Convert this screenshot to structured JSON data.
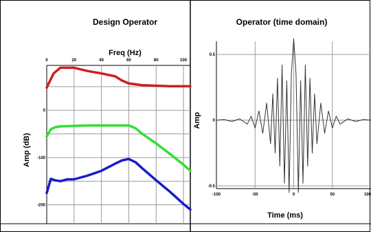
{
  "chart_data": [
    {
      "type": "line",
      "title": "Design Operator",
      "xlabel": "Freq (Hz)",
      "ylabel": "Amp (dB)",
      "x_ticks": [
        "0",
        "20",
        "40",
        "60",
        "80",
        "100"
      ],
      "y_ticks": [
        "0",
        "-100",
        "-200"
      ],
      "xlim": [
        0,
        105
      ],
      "ylim": [
        -240,
        95
      ],
      "grid": true,
      "series": [
        {
          "color": "#cc1f1f",
          "x": [
            0,
            5,
            10,
            20,
            30,
            40,
            50,
            55,
            60,
            65,
            70,
            80,
            90,
            100,
            105
          ],
          "y": [
            48,
            78,
            90,
            90,
            83,
            78,
            72,
            63,
            57,
            55,
            53,
            52,
            51,
            51,
            51
          ]
        },
        {
          "color": "#33dd33",
          "x": [
            0,
            3,
            6,
            10,
            20,
            30,
            40,
            50,
            60,
            65,
            70,
            80,
            90,
            100,
            105
          ],
          "y": [
            -55,
            -40,
            -36,
            -34,
            -33,
            -32,
            -32,
            -32,
            -32,
            -38,
            -50,
            -70,
            -92,
            -115,
            -128
          ]
        },
        {
          "color": "#1a1acc",
          "x": [
            0,
            3,
            6,
            10,
            15,
            20,
            30,
            40,
            50,
            55,
            60,
            65,
            70,
            80,
            90,
            100,
            105
          ],
          "y": [
            -175,
            -145,
            -148,
            -150,
            -146,
            -146,
            -138,
            -128,
            -113,
            -106,
            -103,
            -110,
            -123,
            -148,
            -172,
            -198,
            -210
          ]
        }
      ]
    },
    {
      "type": "line",
      "title": "Operator (time domain)",
      "xlabel": "Time (ms)",
      "ylabel": "Amp",
      "x_ticks": [
        "-100",
        "-50",
        "0",
        "50",
        "100"
      ],
      "y_ticks": [
        "0.5",
        "0",
        "-0.5"
      ],
      "xlim": [
        -100,
        100
      ],
      "ylim": [
        -0.5,
        0.6
      ],
      "grid": true,
      "series": [
        {
          "color": "#333333",
          "x": [
            -100,
            -90,
            -80,
            -70,
            -60,
            -55,
            -50,
            -45,
            -40,
            -35,
            -30,
            -27,
            -24,
            -21,
            -18,
            -15,
            -12,
            -9,
            -6,
            -3,
            0,
            3,
            6,
            9,
            12,
            15,
            18,
            21,
            24,
            27,
            30,
            35,
            40,
            45,
            50,
            55,
            60,
            70,
            80,
            90,
            100
          ],
          "y": [
            0,
            0.005,
            -0.01,
            0.01,
            -0.03,
            0.03,
            -0.06,
            0.07,
            -0.1,
            0.13,
            -0.18,
            0.2,
            -0.25,
            0.32,
            -0.35,
            0.42,
            -0.48,
            0.3,
            -0.55,
            0.35,
            0.62,
            0.35,
            -0.55,
            0.3,
            -0.48,
            0.42,
            -0.35,
            0.32,
            -0.25,
            0.2,
            -0.18,
            0.13,
            -0.1,
            0.07,
            -0.06,
            0.03,
            -0.03,
            0.01,
            -0.01,
            0.005,
            0
          ]
        }
      ]
    }
  ]
}
